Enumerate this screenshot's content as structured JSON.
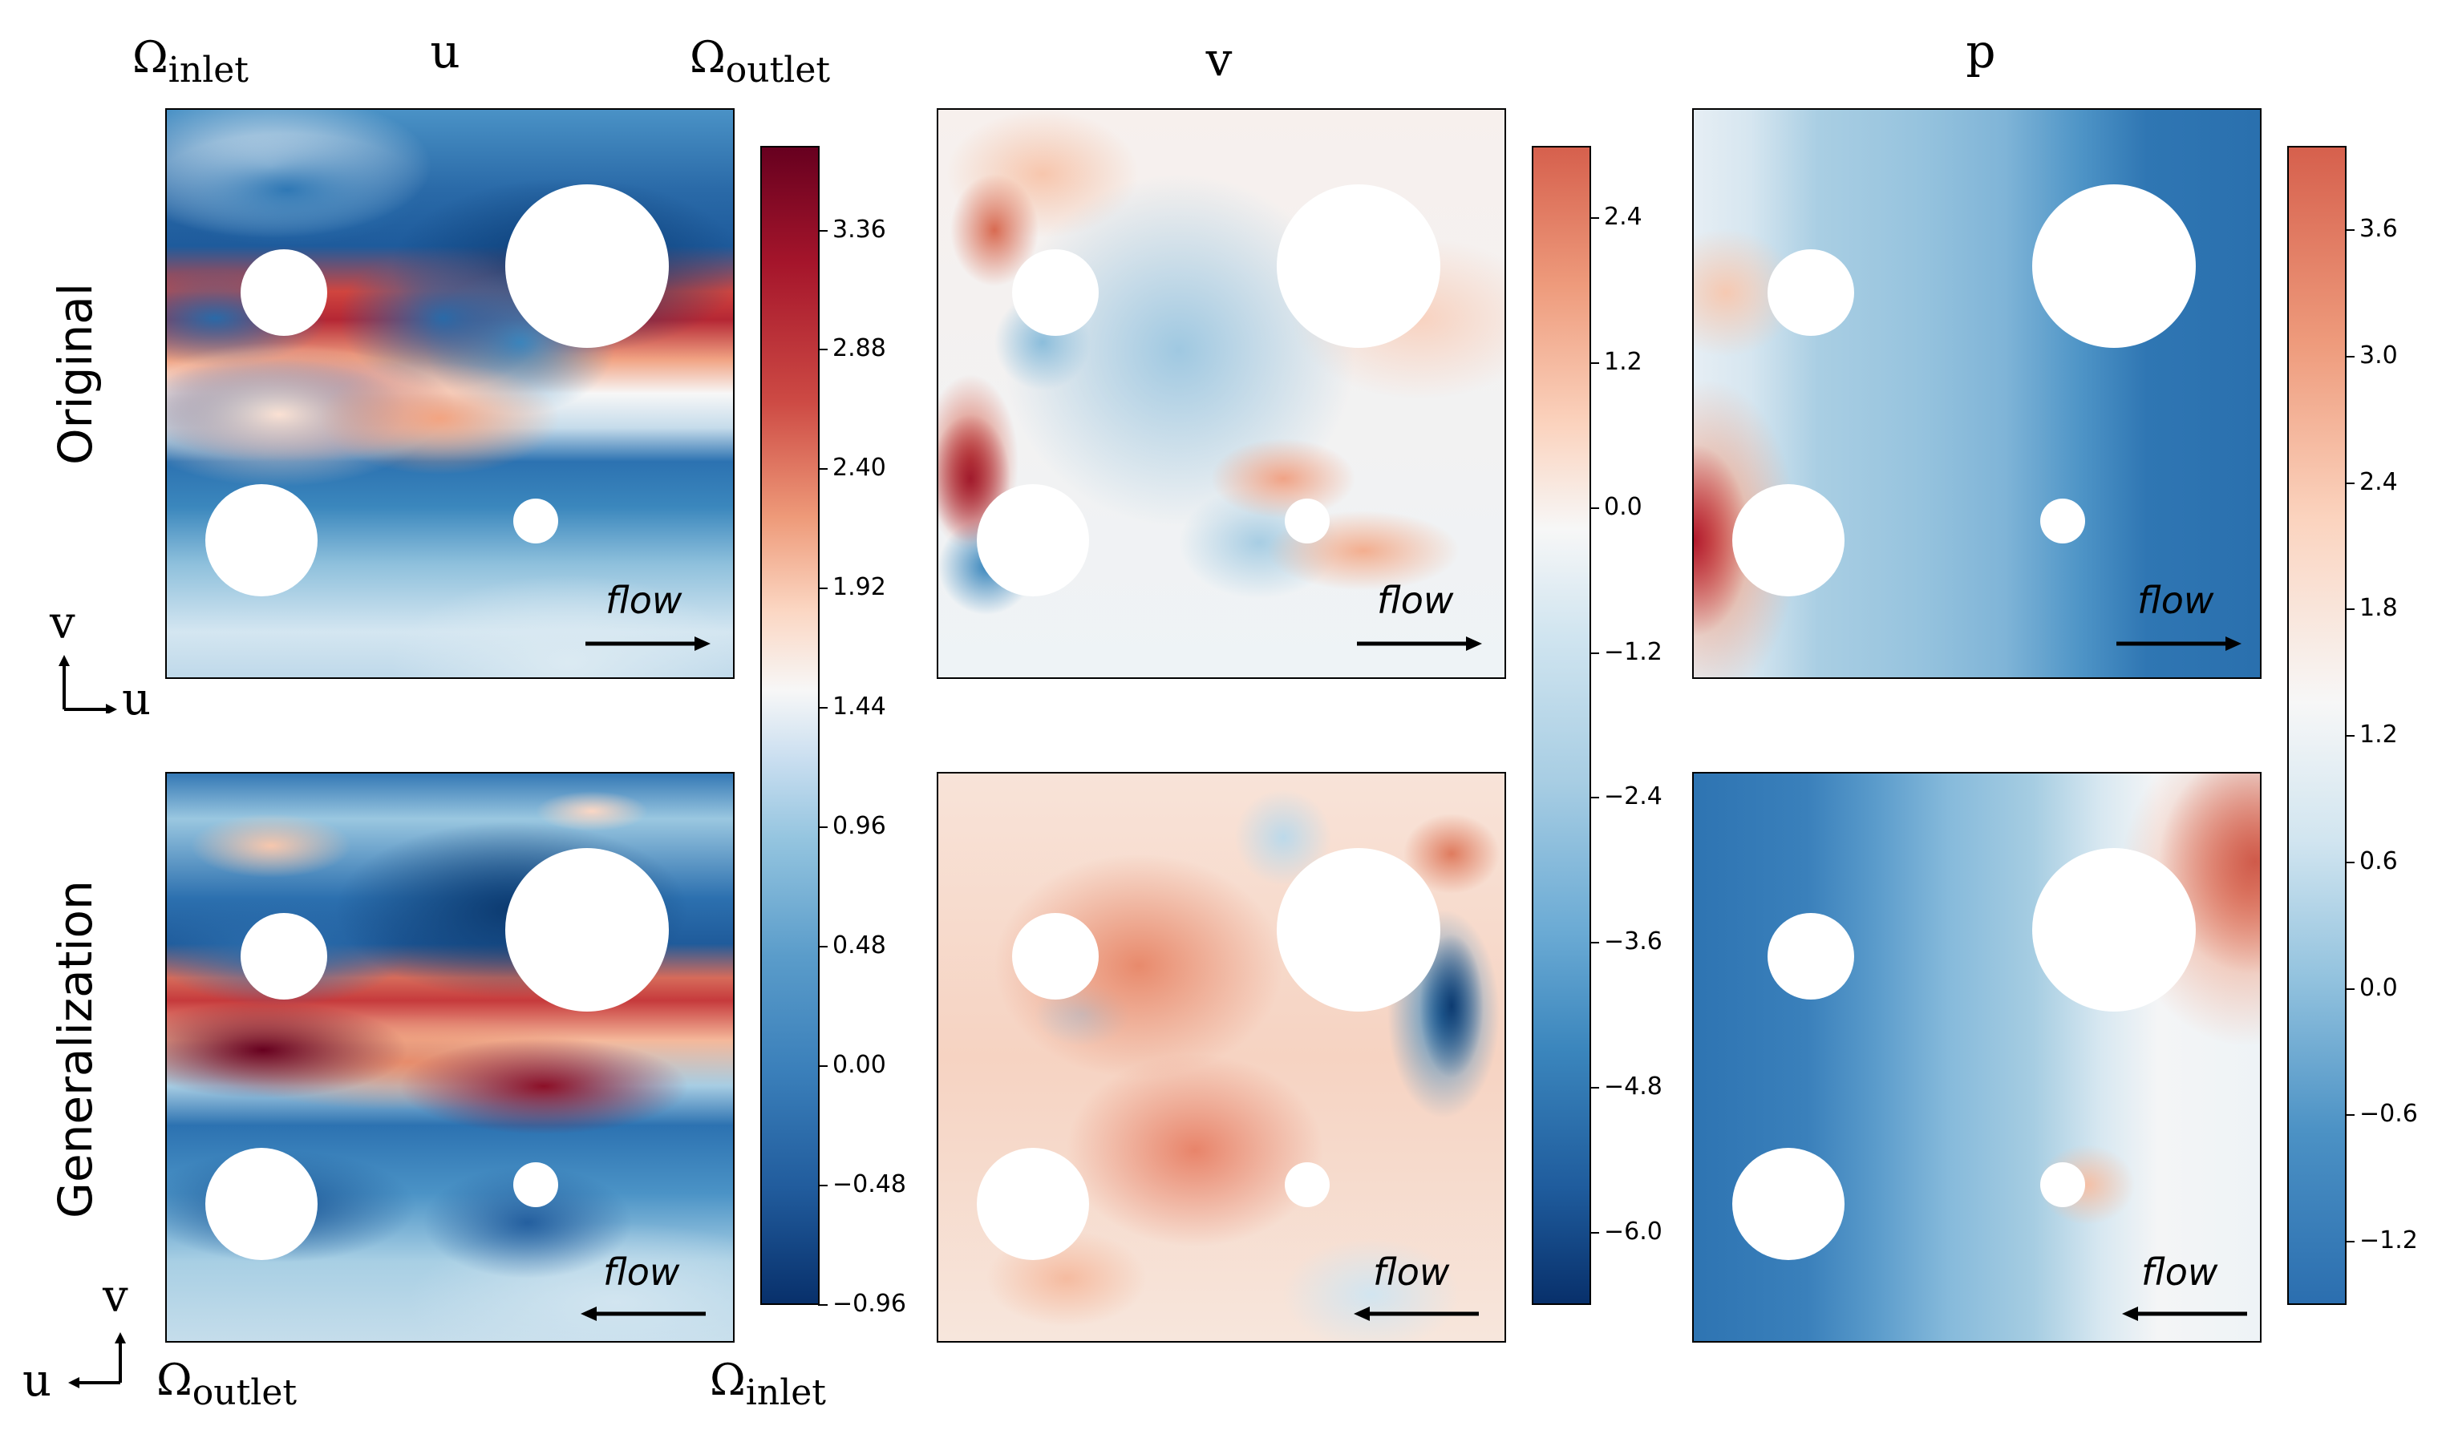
{
  "chart_data": [
    {
      "type": "heatmap",
      "title": "u",
      "field": "u",
      "rows": [
        "Original",
        "Generalization"
      ],
      "colorbar": {
        "ticks": [
          "3.36",
          "2.88",
          "2.40",
          "1.92",
          "1.44",
          "0.96",
          "0.48",
          "0.00",
          "−0.48",
          "−0.96"
        ],
        "min": -0.96,
        "max": 3.7,
        "colormap": "RdBu_r"
      },
      "boundary_labels": {
        "original": {
          "left": "Ωinlet",
          "right": "Ωoutlet"
        },
        "generalization": {
          "left": "Ωoutlet",
          "right": "Ωinlet"
        }
      },
      "annotations": [
        "flow"
      ]
    },
    {
      "type": "heatmap",
      "title": "v",
      "field": "v",
      "rows": [
        "Original",
        "Generalization"
      ],
      "colorbar": {
        "ticks": [
          "2.4",
          "1.2",
          "0.0",
          "−1.2",
          "−2.4",
          "−3.6",
          "−4.8",
          "−6.0"
        ],
        "min": -6.6,
        "max": 3.0,
        "colormap": "RdBu_r"
      },
      "annotations": [
        "flow"
      ]
    },
    {
      "type": "heatmap",
      "title": "p",
      "field": "p",
      "rows": [
        "Original",
        "Generalization"
      ],
      "colorbar": {
        "ticks": [
          "3.6",
          "3.0",
          "2.4",
          "1.8",
          "1.2",
          "0.6",
          "0.0",
          "−0.6",
          "−1.2"
        ],
        "min": -1.5,
        "max": 4.0,
        "colormap": "RdBu_r"
      },
      "annotations": [
        "flow"
      ]
    }
  ],
  "titles": {
    "u": "u",
    "v": "v",
    "p": "p"
  },
  "rows": {
    "top": "Original",
    "bottom": "Generalization"
  },
  "omega": {
    "symbol": "Ω",
    "inlet": "inlet",
    "outlet": "outlet"
  },
  "flow_label": "flow",
  "axis_labels": {
    "v": "v",
    "u": "u"
  },
  "cbar_u": [
    "3.36",
    "2.88",
    "2.40",
    "1.92",
    "1.44",
    "0.96",
    "0.48",
    "0.00",
    "−0.48",
    "−0.96"
  ],
  "cbar_v": [
    "2.4",
    "1.2",
    "0.0",
    "−1.2",
    "−2.4",
    "−3.6",
    "−4.8",
    "−6.0"
  ],
  "cbar_p": [
    "3.6",
    "3.0",
    "2.4",
    "1.8",
    "1.2",
    "0.6",
    "0.0",
    "−0.6",
    "−1.2"
  ],
  "colors": {
    "dark_red": "#67001f",
    "red": "#c13639",
    "light_red": "#f3a481",
    "white": "#f7f7f7",
    "light_blue": "#a6cfe4",
    "blue": "#3a87bd",
    "dark_blue": "#08306b"
  }
}
